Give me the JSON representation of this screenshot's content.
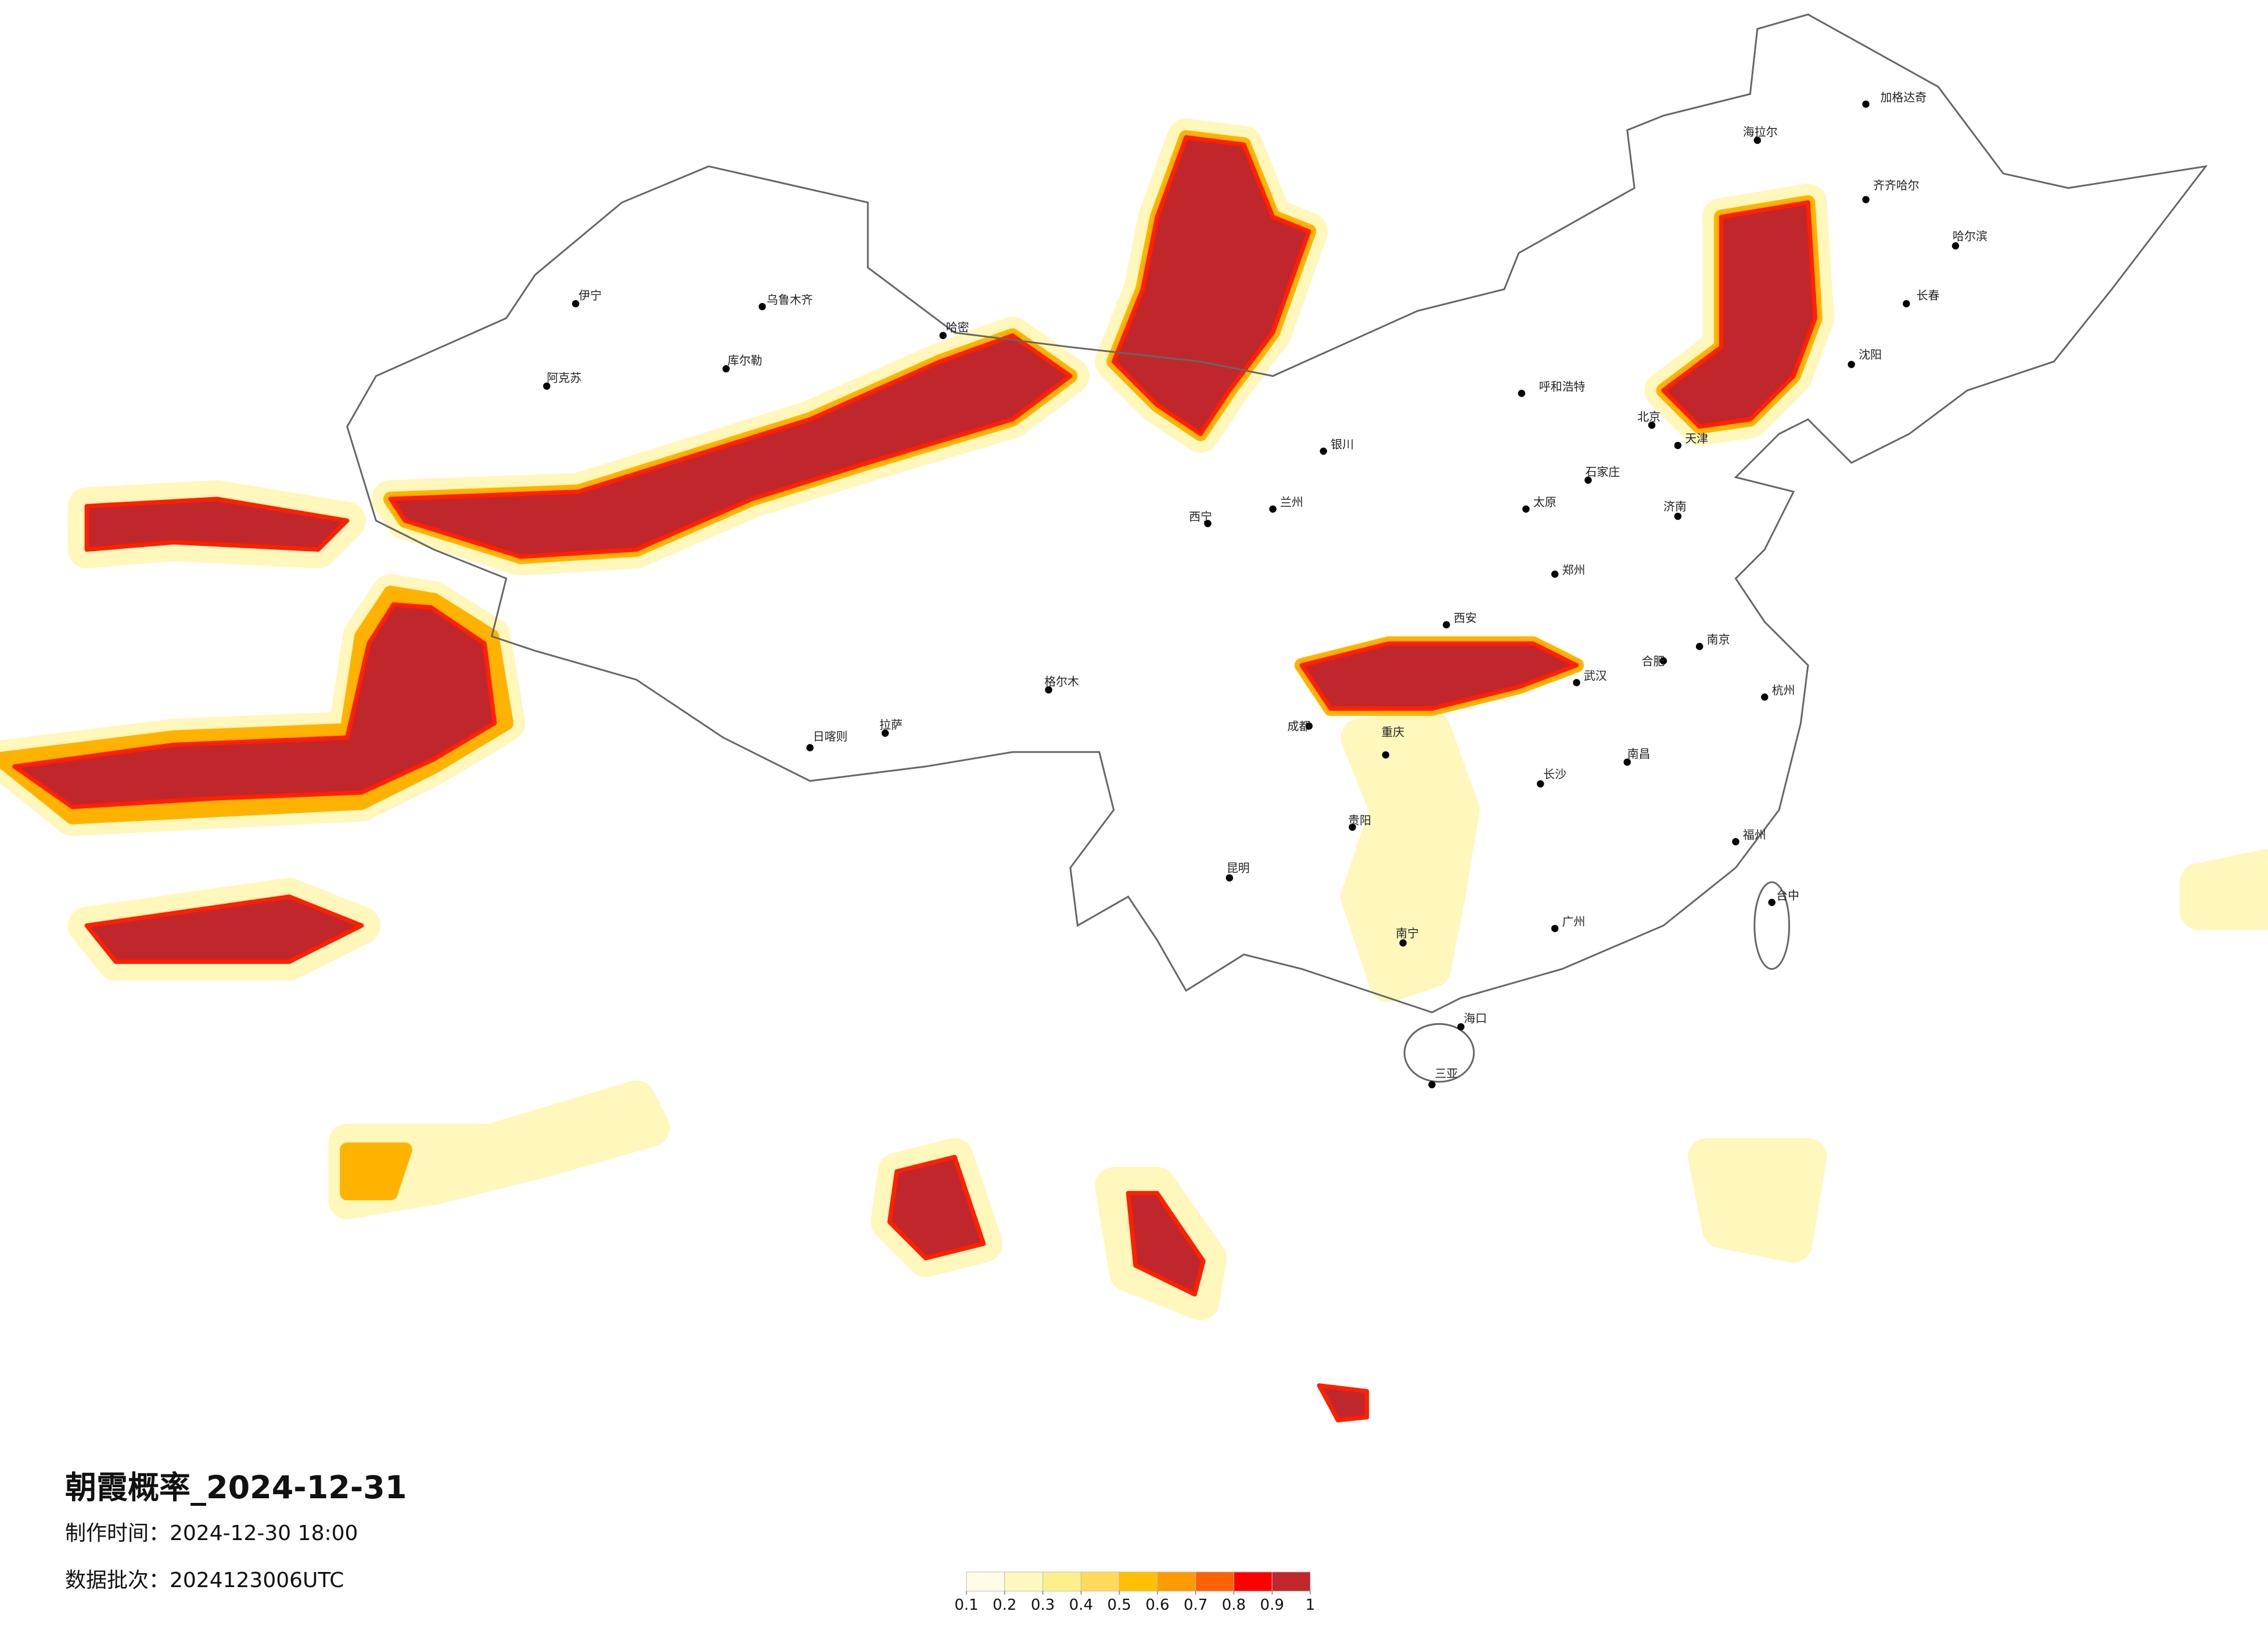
{
  "title": "朝霞概率_2024-12-31",
  "made_time": "制作时间：2024-12-30 18:00",
  "batch": "数据批次：2024123006UTC",
  "colorbar": {
    "colors": [
      "#fffce6",
      "#fff7bf",
      "#ffef8c",
      "#ffd95a",
      "#ffc000",
      "#ff9a00",
      "#ff6200",
      "#ff0000",
      "#c0272d"
    ],
    "ticks": [
      0.1,
      0.2,
      0.3,
      0.4,
      0.5,
      0.6,
      0.7,
      0.8,
      0.9,
      1
    ]
  },
  "cities": [
    "海拉尔",
    "加格达奇",
    "齐齐哈尔",
    "哈尔滨",
    "长春",
    "沈阳",
    "北京",
    "天津",
    "石家庄",
    "呼和浩特",
    "太原",
    "济南",
    "郑州",
    "西安",
    "兰州",
    "西宁",
    "银川",
    "武汉",
    "南京",
    "合肥",
    "杭州",
    "南昌",
    "长沙",
    "重庆",
    "成都",
    "贵阳",
    "昆明",
    "南宁",
    "广州",
    "福州",
    "台中",
    "海口",
    "三亚",
    "拉萨",
    "日喀则",
    "格尔木",
    "乌鲁木齐",
    "库尔勒",
    "阿克苏",
    "伊宁",
    "哈密"
  ]
}
